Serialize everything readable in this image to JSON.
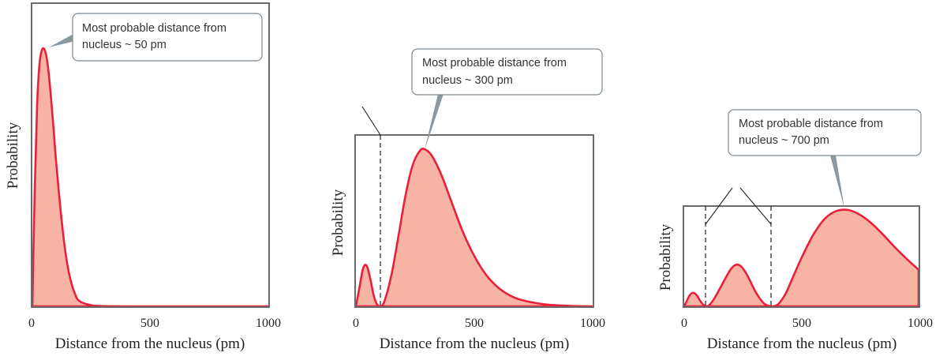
{
  "chart_data": [
    {
      "type": "area",
      "series": [
        {
          "x": [
            0,
            10,
            20,
            30,
            40,
            50,
            60,
            70,
            80,
            90,
            100,
            120,
            140,
            160,
            180,
            200,
            250,
            300,
            400,
            500,
            1000
          ],
          "y": [
            0,
            0.45,
            0.78,
            0.94,
            0.995,
            1.0,
            0.97,
            0.9,
            0.8,
            0.69,
            0.57,
            0.37,
            0.21,
            0.11,
            0.05,
            0.02,
            0.004,
            0.001,
            0,
            0,
            0
          ]
        }
      ],
      "xlim": [
        0,
        1000
      ],
      "xticks": [
        "0",
        "500",
        "1000"
      ],
      "xlabel": "Distance from the nucleus (pm)",
      "ylabel": "Probability",
      "annotation": {
        "line1": "Most probable distance from",
        "line2": "nucleus ~ 50 pm"
      }
    },
    {
      "type": "area",
      "series": [
        {
          "x": [
            0,
            15,
            30,
            45,
            60,
            75,
            90,
            105,
            120,
            150,
            180,
            210,
            240,
            270,
            290,
            320,
            360,
            400,
            450,
            500,
            550,
            600,
            650,
            700,
            800,
            900,
            1000
          ],
          "y": [
            0,
            0.12,
            0.24,
            0.26,
            0.18,
            0.07,
            0.01,
            0.0,
            0.03,
            0.2,
            0.45,
            0.71,
            0.9,
            0.99,
            1.0,
            0.96,
            0.84,
            0.68,
            0.48,
            0.32,
            0.2,
            0.12,
            0.07,
            0.04,
            0.012,
            0.003,
            0
          ]
        }
      ],
      "xlim": [
        0,
        1000
      ],
      "xticks": [
        "0",
        "500",
        "1000"
      ],
      "xlabel": "Distance from the nucleus (pm)",
      "ylabel": "Probability",
      "annotation": {
        "line1": "Most probable distance from",
        "line2": "nucleus ~ 300 pm"
      }
    },
    {
      "type": "area",
      "series": [
        {
          "x": [
            0,
            10,
            25,
            40,
            55,
            70,
            85,
            100,
            120,
            140,
            160,
            180,
            200,
            220,
            240,
            260,
            280,
            300,
            320,
            340,
            360,
            375,
            400,
            430,
            460,
            500,
            550,
            600,
            650,
            700,
            750,
            800,
            850,
            900,
            950,
            1000
          ],
          "y": [
            0,
            0.05,
            0.12,
            0.14,
            0.11,
            0.05,
            0.01,
            0.0,
            0.05,
            0.13,
            0.22,
            0.31,
            0.39,
            0.43,
            0.42,
            0.36,
            0.27,
            0.17,
            0.09,
            0.03,
            0.005,
            0.0,
            0.02,
            0.12,
            0.28,
            0.5,
            0.74,
            0.91,
            0.99,
            1.0,
            0.95,
            0.86,
            0.74,
            0.61,
            0.49,
            0.38
          ]
        }
      ],
      "xlim": [
        0,
        1000
      ],
      "xticks": [
        "0",
        "500",
        "1000"
      ],
      "xlabel": "Distance from the nucleus (pm)",
      "ylabel": "Probability",
      "annotation": {
        "line1": "Most probable distance from",
        "line2": "nucleus ~ 700 pm"
      }
    }
  ]
}
